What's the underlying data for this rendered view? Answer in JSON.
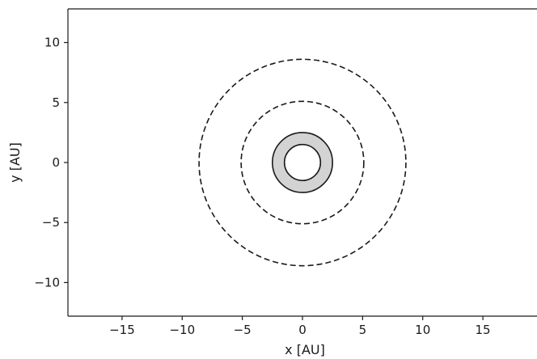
{
  "chart_data": {
    "type": "scatter",
    "title": "",
    "xlabel": "x [AU]",
    "ylabel": "y [AU]",
    "xlim": [
      -19.5,
      19.5
    ],
    "ylim": [
      -12.8,
      12.8
    ],
    "xticks": [
      -15,
      -10,
      -5,
      0,
      5,
      10,
      15
    ],
    "yticks": [
      -10,
      -5,
      0,
      5,
      10
    ],
    "xtick_labels": [
      "−15",
      "−10",
      "−5",
      "0",
      "5",
      "10",
      "15"
    ],
    "ytick_labels": [
      "−10",
      "−5",
      "0",
      "5",
      "10"
    ],
    "grid": false,
    "annulus": {
      "center": [
        0,
        0
      ],
      "inner_radius": 1.5,
      "outer_radius": 2.5,
      "fill": "#d3d3d3",
      "edge": "#1a1a1a"
    },
    "dashed_circles": [
      {
        "center": [
          0,
          0
        ],
        "radius": 5.1
      },
      {
        "center": [
          0,
          0
        ],
        "radius": 8.6
      }
    ]
  }
}
